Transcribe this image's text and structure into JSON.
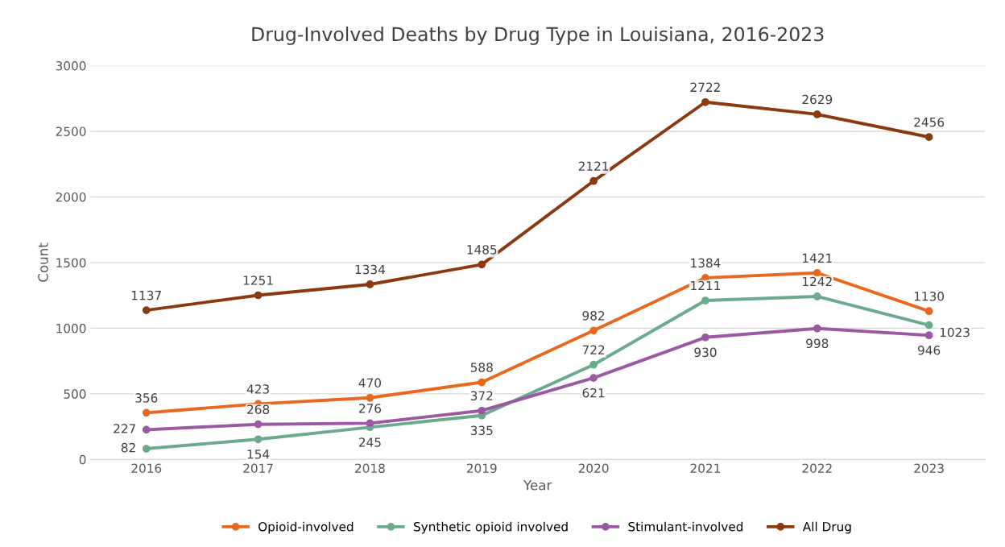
{
  "chart_data": {
    "type": "line",
    "title": "Drug-Involved Deaths by Drug Type in Louisiana, 2016-2023",
    "xlabel": "Year",
    "ylabel": "Count",
    "categories": [
      "2016",
      "2017",
      "2018",
      "2019",
      "2020",
      "2021",
      "2022",
      "2023"
    ],
    "series": [
      {
        "name": "Opioid-involved",
        "color": "#e8681f",
        "values": [
          356,
          423,
          470,
          588,
          982,
          1384,
          1421,
          1130
        ]
      },
      {
        "name": "Synthetic opioid involved",
        "color": "#6aab8e",
        "values": [
          82,
          154,
          245,
          335,
          722,
          1211,
          1242,
          1023
        ]
      },
      {
        "name": "Stimulant-involved",
        "color": "#9b59a4",
        "values": [
          227,
          268,
          276,
          372,
          621,
          930,
          998,
          946
        ]
      },
      {
        "name": "All Drug",
        "color": "#8b3a0f",
        "values": [
          1137,
          1251,
          1334,
          1485,
          2121,
          2722,
          2629,
          2456
        ]
      }
    ],
    "ylim": [
      0,
      3000
    ],
    "yticks": [
      0,
      500,
      1000,
      1500,
      2000,
      2500,
      3000
    ],
    "grid": "y",
    "legend": "bottom",
    "marker": "circle",
    "line_style": "solid",
    "data_labels": true
  }
}
